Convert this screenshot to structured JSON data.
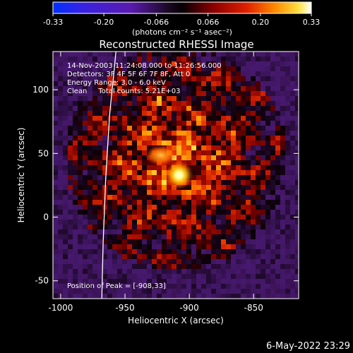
{
  "colorbar": {
    "ticks": [
      "-0.33",
      "-0.20",
      "-0.066",
      "0.066",
      "0.20",
      "0.33"
    ],
    "tick_values": [
      -0.33,
      -0.2,
      -0.066,
      0.066,
      0.2,
      0.33
    ],
    "range": [
      -0.33,
      0.33
    ],
    "units": "(photons cm⁻² s⁻¹ asec⁻²)"
  },
  "image_title": "Reconstructed RHESSI Image",
  "annotations": {
    "time_range": "14-Nov-2003 11:24:08.000 to 11:26:56.000",
    "detectors": "Detectors: 3F 4F 5F 6F 7F 8F, Att 0",
    "energy": "Energy Range: 3.0 - 6.0 keV",
    "method": "Clean     Total counts: 5.21E+03",
    "peak": "Position of Peak = [-908,33]"
  },
  "footer_timestamp": "6-May-2022 23:29",
  "chart_data": {
    "type": "heatmap",
    "title": "Reconstructed RHESSI Image",
    "xlabel": "Heliocentric X (arcsec)",
    "ylabel": "Heliocentric Y (arcsec)",
    "xlim": [
      -1006,
      -815
    ],
    "ylim": [
      -64,
      130
    ],
    "xticks": [
      -1000,
      -950,
      -900,
      -850
    ],
    "xtick_labels": [
      "-1000",
      "-950",
      "-900",
      "-850"
    ],
    "yticks": [
      -50,
      0,
      50,
      100
    ],
    "ytick_labels": [
      "-50",
      "0",
      "50",
      "100"
    ],
    "colormap": "RHESSI diverging (blue-purple-black-red-yellow-white)",
    "peak": {
      "x": -908,
      "y": 33
    },
    "secondary_bright": {
      "x": -928,
      "y": 52
    },
    "limb_curve": [
      [
        -968,
        -64
      ],
      [
        -967,
        -20
      ],
      [
        -965,
        30
      ],
      [
        -962,
        80
      ],
      [
        -957,
        130
      ]
    ]
  }
}
